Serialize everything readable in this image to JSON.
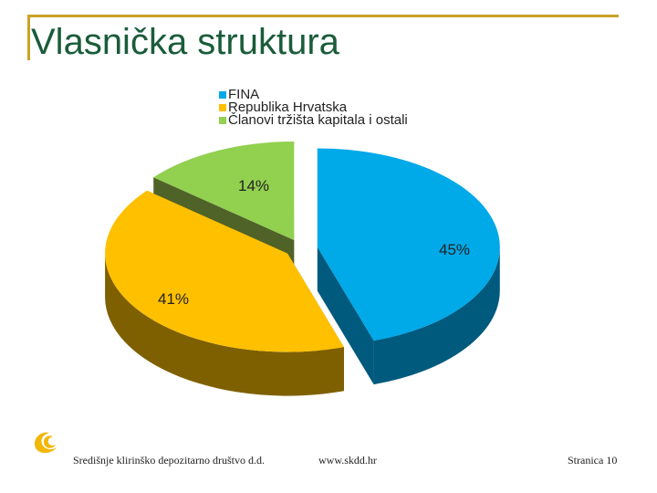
{
  "page": {
    "title": "Vlasnička struktura",
    "accent_color": "#c9a227",
    "title_color": "#1a5c3a"
  },
  "chart_data": {
    "type": "pie",
    "style": "3d-exploded",
    "legend_position": "top",
    "series": [
      {
        "name": "FINA",
        "value": 45,
        "label": "45%",
        "color": "#00a9e8",
        "side_color": "#005a7d"
      },
      {
        "name": "Republika Hrvatska",
        "value": 41,
        "label": "41%",
        "color": "#ffc000",
        "side_color": "#7f6000"
      },
      {
        "name": "Članovi tržišta kapitala i ostali",
        "value": 14,
        "label": "14%",
        "color": "#92d050",
        "side_color": "#4f6228"
      }
    ]
  },
  "footer": {
    "company": "Središnje klirinško depozitarno društvo d.d.",
    "website": "www.skdd.hr",
    "page_label": "Stranica 10"
  },
  "logo": {
    "icon": "skdd-logo-icon",
    "color": "#f2b705"
  }
}
